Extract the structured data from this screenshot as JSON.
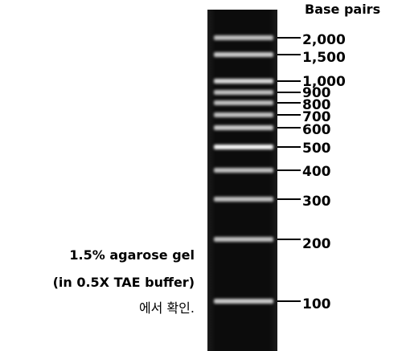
{
  "header": {
    "base_pairs": "Base pairs"
  },
  "caption": {
    "line1": "1.5% agarose gel",
    "line2": "(in 0.5X TAE buffer)",
    "line3": "에서 확인."
  },
  "ladder": {
    "bands": [
      {
        "label": "2,000",
        "bp": 2000,
        "intensity": 0.75
      },
      {
        "label": "1,500",
        "bp": 1500,
        "intensity": 0.8
      },
      {
        "label": "1,000",
        "bp": 1000,
        "intensity": 0.85
      },
      {
        "label": "900",
        "bp": 900,
        "intensity": 0.75
      },
      {
        "label": "800",
        "bp": 800,
        "intensity": 0.75
      },
      {
        "label": "700",
        "bp": 700,
        "intensity": 0.75
      },
      {
        "label": "600",
        "bp": 600,
        "intensity": 0.8
      },
      {
        "label": "500",
        "bp": 500,
        "intensity": 0.98
      },
      {
        "label": "400",
        "bp": 400,
        "intensity": 0.75
      },
      {
        "label": "300",
        "bp": 300,
        "intensity": 0.75
      },
      {
        "label": "200",
        "bp": 200,
        "intensity": 0.75
      },
      {
        "label": "100",
        "bp": 100,
        "intensity": 0.8
      }
    ]
  },
  "colors": {
    "gel": "#0b0b0b",
    "band": "#ffffff",
    "marker_line": "#000000"
  }
}
